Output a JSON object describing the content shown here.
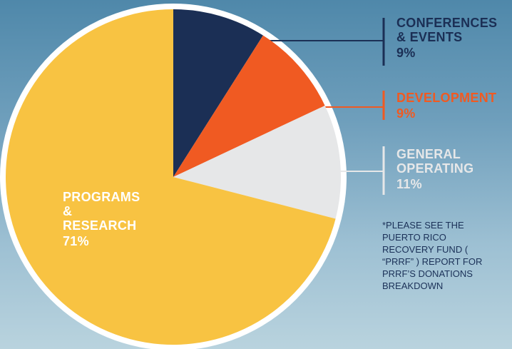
{
  "chart_data": {
    "type": "pie",
    "categories": [
      "CONFERENCES & EVENTS",
      "DEVELOPMENT",
      "GENERAL OPERATING",
      "PROGRAMS & RESEARCH"
    ],
    "values": [
      9,
      9,
      11,
      71
    ],
    "value_labels": [
      "9%",
      "9%",
      "11%",
      "71%"
    ],
    "colors": [
      "#1b2f55",
      "#f05a22",
      "#e6e7e8",
      "#f8c342"
    ],
    "note": "*PLEASE SEE THE PUERTO RICO RECOVERY FUND ( “PRRF” ) REPORT FOR PRRF’S DONATIONS BREAKDOWN"
  }
}
